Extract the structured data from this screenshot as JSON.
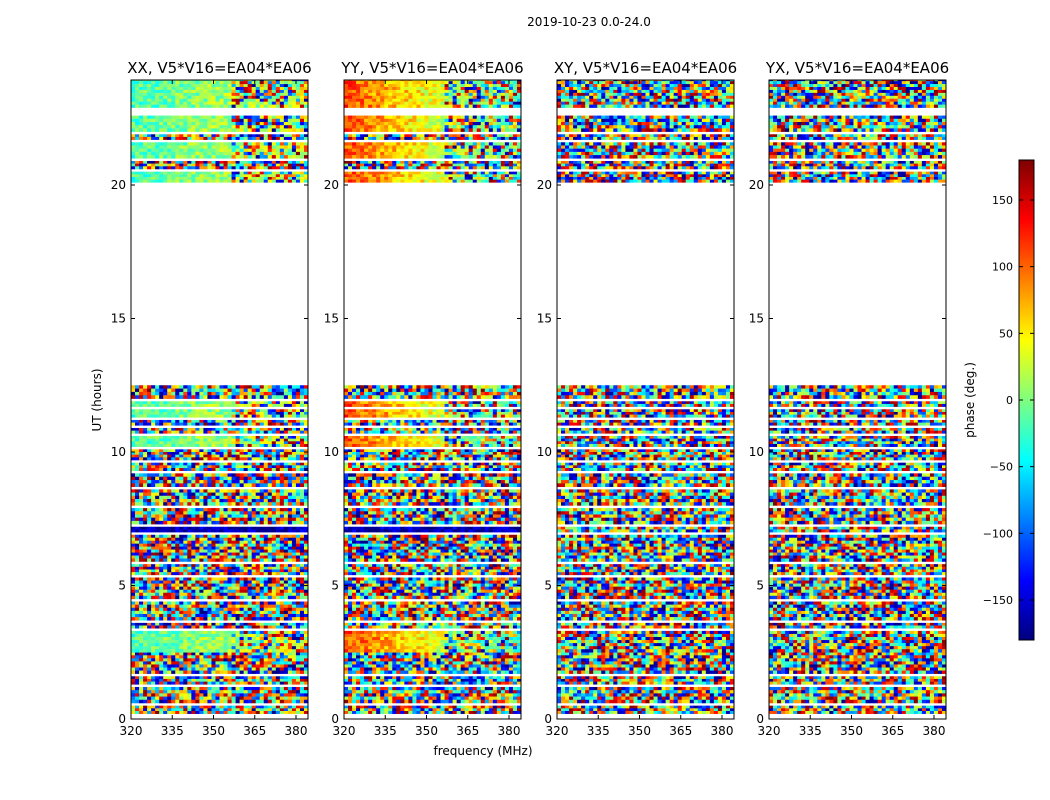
{
  "chart_data": {
    "type": "heatmap",
    "suptitle": "2019-10-23 0.0-24.0",
    "xlabel": "frequency (MHz)",
    "ylabel": "UT (hours)",
    "xlim": [
      320,
      381
    ],
    "ylim": [
      0,
      24
    ],
    "xticks": [
      320,
      335,
      350,
      365,
      380
    ],
    "yticks": [
      0,
      5,
      10,
      15,
      20
    ],
    "colorbar": {
      "label": "phase (deg.)",
      "range": [
        -180,
        180
      ],
      "ticks": [
        150,
        100,
        50,
        0,
        -50,
        -100,
        -150
      ],
      "tick_labels": [
        "150",
        "100",
        "50",
        "0",
        "−50",
        "−100",
        "−150"
      ],
      "colormap": "jet",
      "colors": [
        "#00007f",
        "#0000ff",
        "#007fff",
        "#00ffff",
        "#7fff7f",
        "#ffff00",
        "#ff7f00",
        "#ff0000",
        "#7f0000"
      ]
    },
    "panels": [
      {
        "title": "XX, V5*V16=EA04*EA06",
        "coherent": true,
        "c_start": 0.45,
        "c_end": 0.6
      },
      {
        "title": "YY, V5*V16=EA04*EA06",
        "coherent": true,
        "c_start": 0.8,
        "c_end": 0.4
      },
      {
        "title": "XY, V5*V16=EA04*EA06",
        "coherent": false
      },
      {
        "title": "YX, V5*V16=EA04*EA06",
        "coherent": false
      }
    ],
    "data_bands_ut": [
      [
        0.2,
        0.5,
        0
      ],
      [
        0.6,
        1.2,
        0
      ],
      [
        1.3,
        1.6,
        0
      ],
      [
        1.7,
        2.5,
        0
      ],
      [
        2.5,
        3.3,
        1
      ],
      [
        3.4,
        3.6,
        0
      ],
      [
        3.7,
        4.4,
        0
      ],
      [
        4.5,
        5.3,
        0
      ],
      [
        5.4,
        5.8,
        0
      ],
      [
        5.9,
        6.9,
        0
      ],
      [
        7.0,
        7.2,
        2
      ],
      [
        7.3,
        7.9,
        0
      ],
      [
        8.0,
        8.6,
        0
      ],
      [
        8.7,
        9.2,
        0
      ],
      [
        9.3,
        9.6,
        0
      ],
      [
        9.7,
        10.1,
        0
      ],
      [
        10.2,
        10.6,
        1
      ],
      [
        10.7,
        10.9,
        0
      ],
      [
        11.0,
        11.2,
        0
      ],
      [
        11.3,
        11.6,
        1
      ],
      [
        11.7,
        11.9,
        1
      ],
      [
        12.0,
        12.5,
        0
      ],
      [
        20.1,
        20.5,
        1
      ],
      [
        20.6,
        20.9,
        0
      ],
      [
        21.0,
        21.6,
        1
      ],
      [
        21.7,
        21.9,
        0
      ],
      [
        22.0,
        22.6,
        1
      ],
      [
        22.9,
        24.0,
        1
      ]
    ]
  }
}
